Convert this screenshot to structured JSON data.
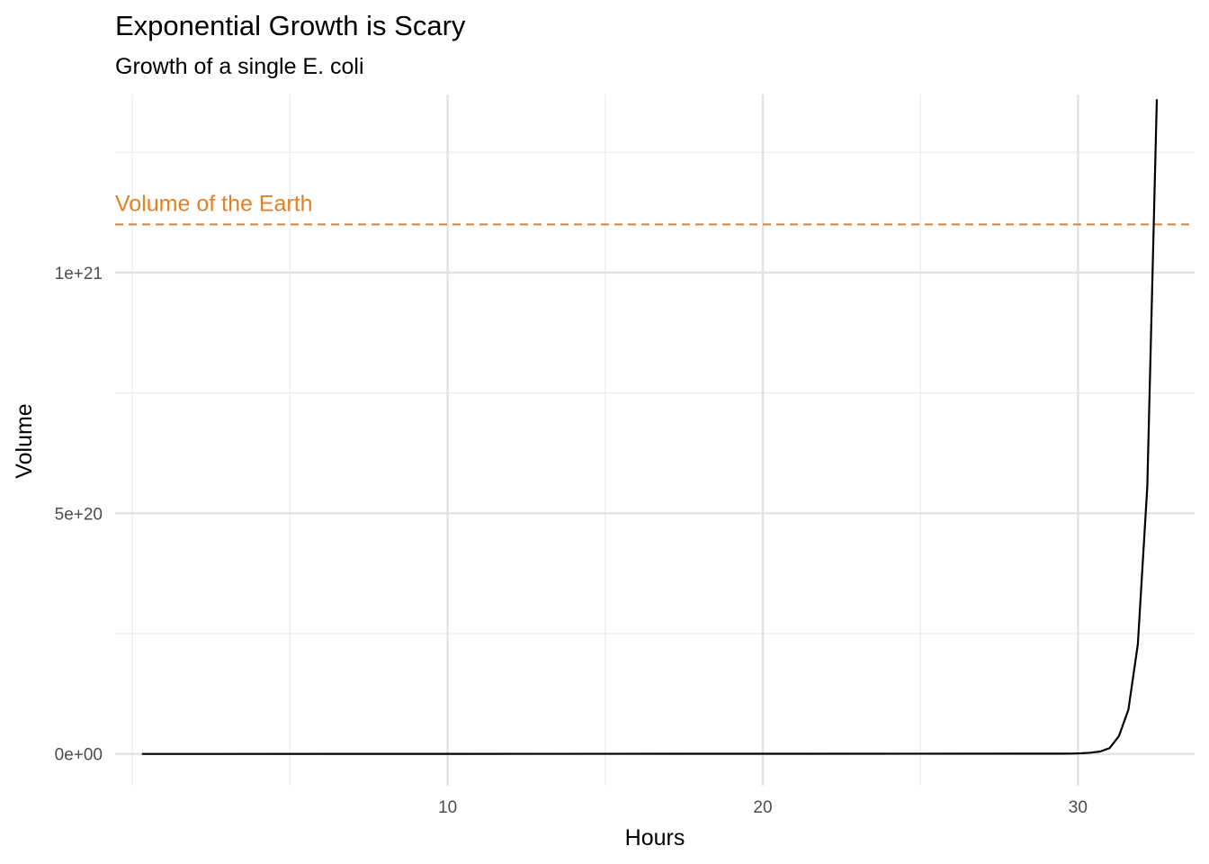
{
  "chart_data": {
    "type": "line",
    "title": "Exponential Growth is Scary",
    "subtitle": "Growth of a single E. coli",
    "xlabel": "Hours",
    "ylabel": "Volume",
    "xlim": [
      -0.55,
      33.7
    ],
    "ylim": [
      -6.6e+19,
      1.37e+21
    ],
    "x_ticks": [
      {
        "value": 10,
        "label": "10"
      },
      {
        "value": 20,
        "label": "20"
      },
      {
        "value": 30,
        "label": "30"
      }
    ],
    "x_minor_ticks": [
      0,
      5,
      15,
      25
    ],
    "y_ticks": [
      {
        "value": 0,
        "label": "0e+00"
      },
      {
        "value": 5e+20,
        "label": "5e+20"
      },
      {
        "value": 1e+21,
        "label": "1e+21"
      }
    ],
    "y_minor_ticks": [
      2.5e+20,
      7.5e+20,
      1.25e+21
    ],
    "grid": true,
    "line_color": "#000000",
    "series": [
      {
        "x": [
          0.3,
          29.5,
          29.8,
          30.1,
          30.4,
          30.7,
          31.0,
          31.3,
          31.6,
          31.9,
          32.2,
          32.5
        ],
        "values": [
          0,
          5e+17,
          8e+17,
          1.4e+18,
          2.6e+18,
          5e+18,
          1.2e+19,
          3.7e+19,
          9.2e+19,
          2.28e+20,
          5.55e+20,
          1.36e+21
        ]
      }
    ],
    "reference_line": {
      "value": 1.1e+21,
      "label": "Volume of the Earth",
      "color": "#E67E22"
    }
  }
}
